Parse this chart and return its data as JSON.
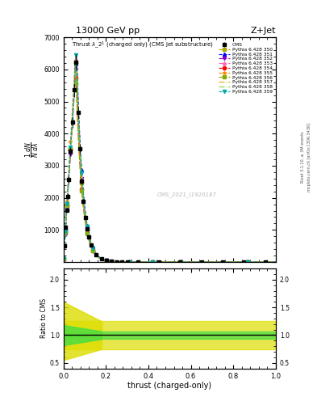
{
  "title_top": "13000 GeV pp",
  "title_right": "Z+Jet",
  "xlabel": "thrust (charged-only)",
  "ylabel_ratio": "Ratio to CMS",
  "watermark": "CMS_2021_I1920187",
  "rivet_text": "Rivet 3.1.10, ≥ 3M events",
  "mcplots_text": "mcplots.cern.ch [arXiv:1306.3436]",
  "xlim": [
    0,
    1
  ],
  "ylim_main": [
    0,
    7000
  ],
  "ylim_ratio": [
    0.4,
    2.2
  ],
  "yticks_main": [
    0,
    1000,
    2000,
    3000,
    4000,
    5000,
    6000,
    7000
  ],
  "yticks_ratio": [
    0.5,
    1.0,
    1.5,
    2.0
  ],
  "series": [
    {
      "label": "CMS",
      "color": "#000000",
      "marker": "s",
      "linestyle": "none"
    },
    {
      "label": "Pythia 6.428 350",
      "color": "#aaaa00",
      "marker": "s",
      "linestyle": "--",
      "scale": 1.0
    },
    {
      "label": "Pythia 6.428 351",
      "color": "#0000ff",
      "marker": "^",
      "linestyle": "--",
      "scale": 1.03
    },
    {
      "label": "Pythia 6.428 352",
      "color": "#8800cc",
      "marker": "v",
      "linestyle": "-.",
      "scale": 0.98
    },
    {
      "label": "Pythia 6.428 353",
      "color": "#ff66bb",
      "marker": "^",
      "linestyle": "-.",
      "scale": 1.02
    },
    {
      "label": "Pythia 6.428 354",
      "color": "#ff0000",
      "marker": "o",
      "linestyle": "--",
      "scale": 0.97
    },
    {
      "label": "Pythia 6.428 355",
      "color": "#ff8800",
      "marker": "*",
      "linestyle": "--",
      "scale": 1.04
    },
    {
      "label": "Pythia 6.428 356",
      "color": "#88aa00",
      "marker": "s",
      "linestyle": "-.",
      "scale": 0.96
    },
    {
      "label": "Pythia 6.428 357",
      "color": "#ddaa00",
      "marker": "none",
      "linestyle": "-.",
      "scale": 1.01
    },
    {
      "label": "Pythia 6.428 358",
      "color": "#88cc44",
      "marker": "none",
      "linestyle": "-.",
      "scale": 0.99
    },
    {
      "label": "Pythia 6.428 359",
      "color": "#00aaaa",
      "marker": "v",
      "linestyle": "--",
      "scale": 1.05
    }
  ],
  "background_color": "#ffffff",
  "ratio_green_lo": 0.93,
  "ratio_green_hi": 1.07,
  "ratio_yellow_lo": 0.75,
  "ratio_yellow_hi": 1.25,
  "ratio_lowx_yellow_lo": 0.55,
  "ratio_lowx_yellow_hi": 1.6,
  "ratio_lowx_green_lo": 0.82,
  "ratio_lowx_green_hi": 1.18
}
